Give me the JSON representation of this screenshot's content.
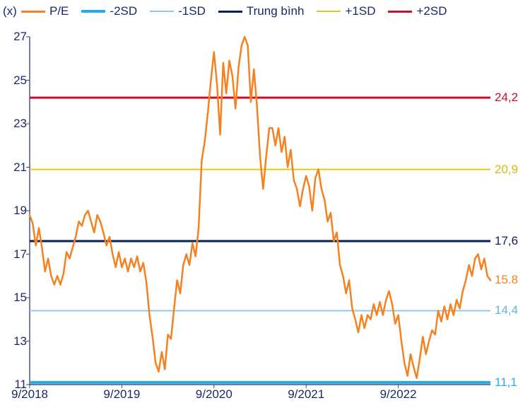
{
  "chart": {
    "type": "line",
    "y_axis_title": "(x)",
    "background_color": "#ffffff",
    "axis_color": "#1b2a66",
    "tick_color": "#4a4a4a",
    "tick_fontsize": 17,
    "label_color": "#1b2a66",
    "ylim": [
      11,
      27
    ],
    "yticks": [
      11,
      13,
      15,
      17,
      19,
      21,
      23,
      25,
      27
    ],
    "xlim": [
      0,
      60
    ],
    "xticks": [
      {
        "pos": 0,
        "label": "9/2018"
      },
      {
        "pos": 12,
        "label": "9/2019"
      },
      {
        "pos": 24,
        "label": "9/2020"
      },
      {
        "pos": 36,
        "label": "9/2021"
      },
      {
        "pos": 48,
        "label": "9/2022"
      }
    ],
    "legend": [
      {
        "label": "P/E",
        "color": "#f58220",
        "width": 3
      },
      {
        "label": "-2SD",
        "color": "#29abe2",
        "width": 4
      },
      {
        "label": "-1SD",
        "color": "#8fc9e8",
        "width": 2
      },
      {
        "label": "Trung bình",
        "color": "#0a1e5a",
        "width": 3
      },
      {
        "label": "+1SD",
        "color": "#e8c81e",
        "width": 2
      },
      {
        "label": "+2SD",
        "color": "#c8102e",
        "width": 3
      }
    ],
    "horizontal_lines": [
      {
        "value": 11.1,
        "color": "#29abe2",
        "width": 4,
        "right_label": "11,1",
        "right_color": "#29abe2"
      },
      {
        "value": 14.4,
        "color": "#8fc9e8",
        "width": 2,
        "right_label": "14,4",
        "right_color": "#6ab3dc"
      },
      {
        "value": 17.6,
        "color": "#0a1e5a",
        "width": 3,
        "right_label": "17,6",
        "right_color": "#0a1e5a"
      },
      {
        "value": 20.9,
        "color": "#e8c81e",
        "width": 2,
        "right_label": "20,9",
        "right_color": "#d9b81a"
      },
      {
        "value": 24.2,
        "color": "#c8102e",
        "width": 3,
        "right_label": "24,2",
        "right_color": "#c8102e"
      }
    ],
    "pe_series": {
      "color": "#f58220",
      "width": 2.5,
      "right_label": "15.8",
      "right_color": "#f58220",
      "right_value": 15.8,
      "points": [
        [
          0,
          18.8
        ],
        [
          0.4,
          18.4
        ],
        [
          0.8,
          17.4
        ],
        [
          1.2,
          18.2
        ],
        [
          1.6,
          17.3
        ],
        [
          2,
          16.2
        ],
        [
          2.4,
          16.8
        ],
        [
          2.8,
          16.0
        ],
        [
          3.2,
          15.6
        ],
        [
          3.6,
          16.0
        ],
        [
          4,
          15.6
        ],
        [
          4.4,
          16.1
        ],
        [
          4.8,
          17.1
        ],
        [
          5.2,
          16.8
        ],
        [
          5.6,
          17.3
        ],
        [
          6,
          17.8
        ],
        [
          6.4,
          18.5
        ],
        [
          6.8,
          18.3
        ],
        [
          7.2,
          18.8
        ],
        [
          7.6,
          19.0
        ],
        [
          8,
          18.5
        ],
        [
          8.4,
          18.0
        ],
        [
          8.8,
          18.8
        ],
        [
          9.2,
          18.5
        ],
        [
          9.6,
          18.0
        ],
        [
          10,
          17.4
        ],
        [
          10.4,
          17.8
        ],
        [
          10.8,
          17.0
        ],
        [
          11.2,
          16.4
        ],
        [
          11.6,
          17.1
        ],
        [
          12,
          16.4
        ],
        [
          12.4,
          16.8
        ],
        [
          12.8,
          16.2
        ],
        [
          13.2,
          16.8
        ],
        [
          13.6,
          16.4
        ],
        [
          14,
          16.9
        ],
        [
          14.4,
          16.2
        ],
        [
          14.8,
          16.6
        ],
        [
          15.2,
          15.7
        ],
        [
          15.6,
          14.2
        ],
        [
          16,
          13.2
        ],
        [
          16.4,
          12.0
        ],
        [
          16.8,
          11.6
        ],
        [
          17.2,
          12.5
        ],
        [
          17.6,
          11.7
        ],
        [
          18,
          13.3
        ],
        [
          18.4,
          13.1
        ],
        [
          18.8,
          14.5
        ],
        [
          19.2,
          15.8
        ],
        [
          19.6,
          15.2
        ],
        [
          20,
          16.5
        ],
        [
          20.4,
          17.0
        ],
        [
          20.8,
          16.5
        ],
        [
          21.2,
          17.5
        ],
        [
          21.6,
          16.9
        ],
        [
          22,
          18.2
        ],
        [
          22.4,
          21.3
        ],
        [
          22.8,
          22.2
        ],
        [
          23.2,
          23.5
        ],
        [
          23.6,
          25.0
        ],
        [
          24,
          26.3
        ],
        [
          24.4,
          24.8
        ],
        [
          24.8,
          22.5
        ],
        [
          25.2,
          25.8
        ],
        [
          25.6,
          24.4
        ],
        [
          26,
          25.9
        ],
        [
          26.4,
          25.2
        ],
        [
          26.8,
          23.7
        ],
        [
          27.2,
          25.6
        ],
        [
          27.6,
          26.6
        ],
        [
          28,
          27.0
        ],
        [
          28.4,
          26.6
        ],
        [
          28.8,
          24.0
        ],
        [
          29.2,
          25.5
        ],
        [
          29.6,
          23.8
        ],
        [
          30,
          21.5
        ],
        [
          30.4,
          20.0
        ],
        [
          30.8,
          21.5
        ],
        [
          31.2,
          22.8
        ],
        [
          31.6,
          22.8
        ],
        [
          32,
          22.0
        ],
        [
          32.4,
          22.8
        ],
        [
          32.8,
          21.7
        ],
        [
          33.2,
          22.4
        ],
        [
          33.6,
          21.0
        ],
        [
          34,
          21.8
        ],
        [
          34.4,
          20.4
        ],
        [
          34.8,
          20.0
        ],
        [
          35.2,
          19.2
        ],
        [
          35.6,
          20.0
        ],
        [
          36,
          20.6
        ],
        [
          36.4,
          20.1
        ],
        [
          36.8,
          19.0
        ],
        [
          37.2,
          20.5
        ],
        [
          37.6,
          20.9
        ],
        [
          38,
          20.0
        ],
        [
          38.4,
          19.5
        ],
        [
          38.8,
          18.5
        ],
        [
          39.2,
          18.9
        ],
        [
          39.6,
          17.6
        ],
        [
          40,
          18.0
        ],
        [
          40.4,
          16.5
        ],
        [
          40.8,
          16.0
        ],
        [
          41.2,
          15.2
        ],
        [
          41.6,
          15.8
        ],
        [
          42,
          14.5
        ],
        [
          42.4,
          14.0
        ],
        [
          42.8,
          13.4
        ],
        [
          43.2,
          14.2
        ],
        [
          43.6,
          13.6
        ],
        [
          44,
          14.2
        ],
        [
          44.4,
          14.0
        ],
        [
          44.8,
          14.7
        ],
        [
          45.2,
          14.2
        ],
        [
          45.6,
          14.8
        ],
        [
          46,
          14.2
        ],
        [
          46.4,
          14.9
        ],
        [
          46.8,
          15.3
        ],
        [
          47.2,
          14.7
        ],
        [
          47.6,
          13.8
        ],
        [
          48,
          14.2
        ],
        [
          48.4,
          13.0
        ],
        [
          48.8,
          12.0
        ],
        [
          49.2,
          11.4
        ],
        [
          49.6,
          12.4
        ],
        [
          50,
          11.8
        ],
        [
          50.4,
          11.3
        ],
        [
          50.8,
          12.2
        ],
        [
          51.2,
          13.2
        ],
        [
          51.6,
          12.4
        ],
        [
          52,
          13.0
        ],
        [
          52.4,
          13.5
        ],
        [
          52.8,
          13.3
        ],
        [
          53.2,
          14.4
        ],
        [
          53.6,
          13.9
        ],
        [
          54,
          14.6
        ],
        [
          54.4,
          14.0
        ],
        [
          54.8,
          14.7
        ],
        [
          55.2,
          14.2
        ],
        [
          55.6,
          14.9
        ],
        [
          56,
          14.5
        ],
        [
          56.4,
          15.3
        ],
        [
          56.8,
          15.8
        ],
        [
          57.2,
          16.5
        ],
        [
          57.6,
          16.0
        ],
        [
          58,
          16.8
        ],
        [
          58.4,
          17.0
        ],
        [
          58.8,
          16.3
        ],
        [
          59.2,
          16.8
        ],
        [
          59.6,
          16.0
        ],
        [
          60,
          15.8
        ]
      ]
    }
  }
}
